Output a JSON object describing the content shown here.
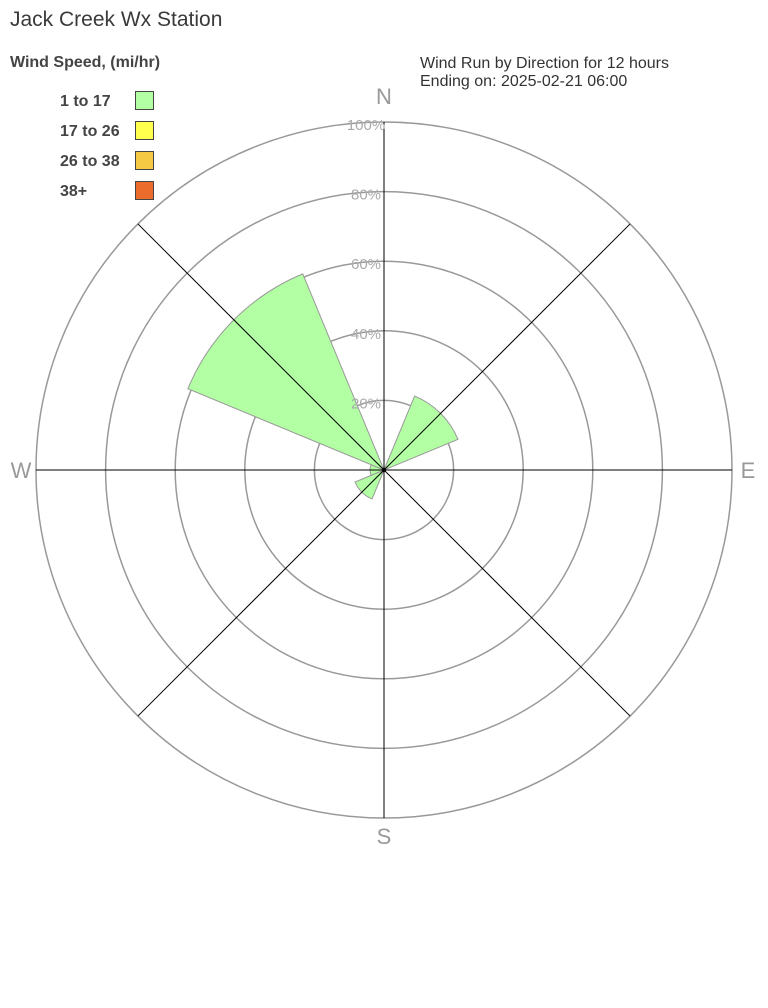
{
  "chart_data": {
    "type": "wind-rose",
    "title": "Jack Creek Wx Station",
    "subtitle": [
      "Wind Run by Direction for 12 hours",
      "Ending on: 2025-02-21 06:00"
    ],
    "legend_title": "Wind Speed, (mi/hr)",
    "legend": [
      {
        "label": "1 to 17",
        "color": "#b3ffa3"
      },
      {
        "label": "17 to 26",
        "color": "#ffff4d"
      },
      {
        "label": "26 to 38",
        "color": "#f6c944"
      },
      {
        "label": "38+",
        "color": "#ec6c2c"
      }
    ],
    "direction_labels": {
      "N": "N",
      "E": "E",
      "S": "S",
      "W": "W"
    },
    "ring_labels": [
      "20%",
      "40%",
      "60%",
      "80%",
      "100%"
    ],
    "rmax": 100,
    "directions": [
      "N",
      "NE",
      "E",
      "SE",
      "S",
      "SW",
      "W",
      "NW"
    ],
    "series": [
      {
        "name": "1 to 17",
        "values": [
          0,
          23,
          0,
          0,
          0,
          9,
          4,
          61
        ]
      },
      {
        "name": "17 to 26",
        "values": [
          0,
          0,
          0,
          0,
          0,
          0,
          0,
          0
        ]
      },
      {
        "name": "26 to 38",
        "values": [
          0,
          0,
          0,
          0,
          0,
          0,
          0,
          0
        ]
      },
      {
        "name": "38+",
        "values": [
          0,
          0,
          0,
          0,
          0,
          0,
          0,
          0
        ]
      }
    ]
  }
}
